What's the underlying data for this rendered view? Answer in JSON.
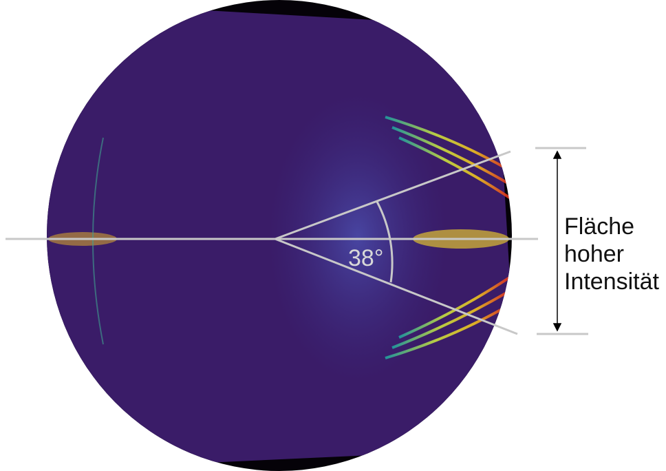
{
  "angle_label": "38°",
  "annotation": {
    "lines": [
      "Fläche",
      "hoher",
      "Intensität"
    ]
  }
}
